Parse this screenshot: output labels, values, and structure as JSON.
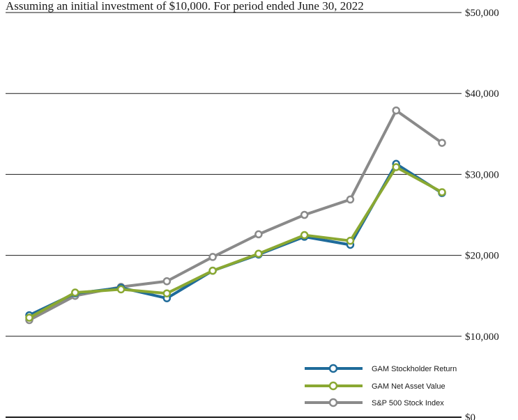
{
  "chart_data": {
    "type": "line",
    "subtitle": "Assuming an initial investment of $10,000. For period ended June 30, 2022",
    "ylim": [
      0,
      50000
    ],
    "y_ticks": [
      {
        "value": 0,
        "label": "$0"
      },
      {
        "value": 10000,
        "label": "$10,000"
      },
      {
        "value": 20000,
        "label": "$20,000"
      },
      {
        "value": 30000,
        "label": "$30,000"
      },
      {
        "value": 40000,
        "label": "$40,000"
      },
      {
        "value": 50000,
        "label": "$50,000"
      }
    ],
    "grid": true,
    "legend_position": "bottom-right",
    "series": [
      {
        "name": "GAM Stockholder Return",
        "color": "#1f6b9a",
        "values": [
          12600,
          15300,
          16000,
          14700,
          18100,
          20100,
          22300,
          21300,
          31300,
          27700
        ]
      },
      {
        "name": "GAM Net Asset Value",
        "color": "#8aa832",
        "values": [
          12300,
          15400,
          15800,
          15300,
          18100,
          20200,
          22500,
          21800,
          30900,
          27800
        ]
      },
      {
        "name": "S&P 500 Stock Index",
        "color": "#8a8a8a",
        "values": [
          12000,
          15000,
          16100,
          16800,
          19800,
          22600,
          25000,
          26900,
          37900,
          33900
        ]
      }
    ]
  }
}
